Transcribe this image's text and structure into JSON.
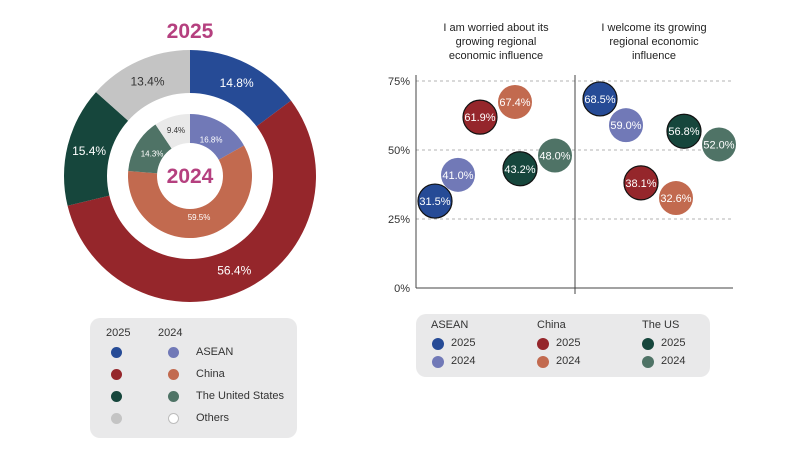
{
  "colors": {
    "asean_2025": "#264b96",
    "asean_2024": "#7179b7",
    "china_2025": "#95262b",
    "china_2024": "#c26a4f",
    "us_2025": "#16463c",
    "us_2024": "#4f7366",
    "others_2025": "#c4c4c4",
    "others_2024": "#e9e9e9",
    "title": "#b5407f",
    "legend_bg": "#e9e9ea"
  },
  "chart_data": [
    {
      "type": "pie",
      "variant": "nested-donut",
      "title_outer": "2025",
      "title_inner": "2024",
      "categories": [
        "ASEAN",
        "China",
        "The United States",
        "Others"
      ],
      "series": [
        {
          "name": "2025",
          "values": [
            14.8,
            56.4,
            15.4,
            13.4
          ],
          "labels": [
            "14.8%",
            "56.4%",
            "15.4%",
            "13.4%"
          ]
        },
        {
          "name": "2024",
          "values": [
            16.8,
            59.5,
            14.3,
            9.4
          ],
          "labels": [
            "16.8%",
            "59.5%",
            "14.3%",
            "9.4%"
          ]
        }
      ],
      "legend": {
        "headers": [
          "2025",
          "2024"
        ],
        "items": [
          "ASEAN",
          "China",
          "The United States",
          "Others"
        ]
      }
    },
    {
      "type": "scatter",
      "variant": "bubble",
      "panels": [
        {
          "title": "I am worried about its growing regional economic influence"
        },
        {
          "title": "I welcome its growing regional economic influence"
        }
      ],
      "y_ticks": [
        "75%",
        "50%",
        "25%",
        "0%"
      ],
      "ylim": [
        0,
        75
      ],
      "series": [
        {
          "name": "ASEAN 2025",
          "worried": 31.5,
          "welcome": 68.5,
          "worried_label": "31.5%",
          "welcome_label": "68.5%"
        },
        {
          "name": "ASEAN 2024",
          "worried": 41.0,
          "welcome": 59.0,
          "worried_label": "41.0%",
          "welcome_label": "59.0%"
        },
        {
          "name": "China 2025",
          "worried": 61.9,
          "welcome": 38.1,
          "worried_label": "61.9%",
          "welcome_label": "38.1%"
        },
        {
          "name": "China 2024",
          "worried": 67.4,
          "welcome": 32.6,
          "worried_label": "67.4%",
          "welcome_label": "32.6%"
        },
        {
          "name": "The US 2025",
          "worried": 43.2,
          "welcome": 56.8,
          "worried_label": "43.2%",
          "welcome_label": "56.8%"
        },
        {
          "name": "The US 2024",
          "worried": 48.0,
          "welcome": 52.0,
          "worried_label": "48.0%",
          "welcome_label": "52.0%"
        }
      ],
      "legend": {
        "groups": [
          {
            "title": "ASEAN",
            "items": [
              "2025",
              "2024"
            ]
          },
          {
            "title": "China",
            "items": [
              "2025",
              "2024"
            ]
          },
          {
            "title": "The US",
            "items": [
              "2025",
              "2024"
            ]
          }
        ]
      }
    }
  ]
}
